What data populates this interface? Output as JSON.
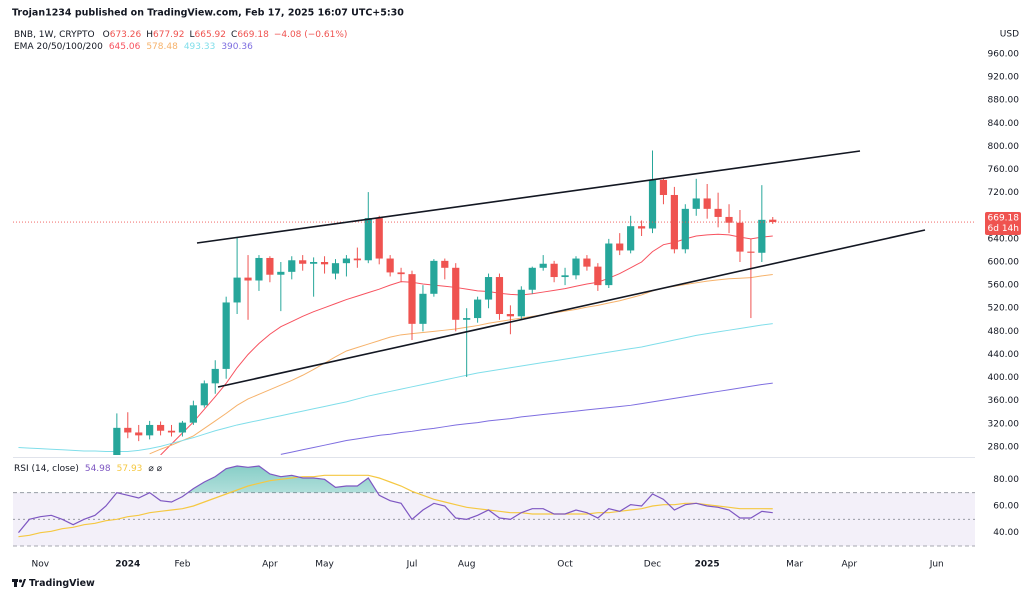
{
  "header": "Trojan1234 published on TradingView.com, Feb 17, 2025 16:07 UTC+5:30",
  "footer": "TradingView",
  "chart_data": [
    {
      "type": "candlestick",
      "categories": [
        null,
        null,
        "Nov",
        null,
        null,
        null,
        null,
        null,
        null,
        null,
        "2024",
        null,
        null,
        null,
        null,
        "Feb",
        null,
        null,
        null,
        null,
        null,
        null,
        null,
        "Apr",
        null,
        null,
        null,
        null,
        "May",
        null,
        null,
        null,
        null,
        null,
        null,
        null,
        "Jul",
        null,
        null,
        null,
        null,
        "Aug",
        null,
        null,
        null,
        null,
        null,
        null,
        null,
        null,
        "Oct",
        null,
        null,
        null,
        null,
        null,
        null,
        null,
        "Dec",
        null,
        null,
        null,
        null,
        "2025",
        null,
        null,
        null,
        null,
        null,
        null,
        null,
        "Mar",
        null,
        null,
        null,
        null,
        "Apr",
        null,
        null,
        null,
        null,
        null,
        null,
        null,
        "Jun",
        null,
        null,
        null
      ],
      "series": [
        {
          "name": "BNB, 1W, CRYPTO",
          "up_color": "#26a69a",
          "down_color": "#ef5350",
          "open": [
            null,
            null,
            null,
            null,
            null,
            null,
            null,
            null,
            null,
            243,
            313,
            305,
            300,
            318,
            308,
            305,
            322,
            352,
            390,
            415,
            530,
            573,
            568,
            607,
            578,
            583,
            603,
            597,
            600,
            580,
            598,
            606,
            603,
            676,
            606,
            582,
            579,
            493,
            545,
            602,
            590,
            500,
            503,
            535,
            574,
            510,
            506,
            552,
            590,
            597,
            574,
            577,
            606,
            592,
            560,
            632,
            620,
            662,
            658,
            742,
            716,
            622,
            692,
            710,
            692,
            678,
            668,
            618,
            616,
            673.26,
            null,
            null,
            null,
            null,
            null,
            null,
            null,
            null,
            null,
            null,
            null,
            null,
            null,
            null,
            null,
            null,
            null,
            null
          ],
          "high": [
            null,
            null,
            null,
            null,
            null,
            null,
            null,
            null,
            null,
            338,
            340,
            318,
            325,
            324,
            318,
            325,
            360,
            395,
            430,
            540,
            643,
            612,
            612,
            610,
            600,
            610,
            612,
            608,
            610,
            605,
            612,
            625,
            721,
            680,
            612,
            590,
            585,
            560,
            605,
            606,
            598,
            520,
            540,
            580,
            580,
            525,
            558,
            592,
            612,
            602,
            590,
            610,
            612,
            598,
            640,
            650,
            680,
            672,
            793,
            745,
            730,
            700,
            744,
            735,
            720,
            700,
            690,
            640,
            733,
            677.92,
            null,
            null,
            null,
            null,
            null,
            null,
            null,
            null,
            null,
            null,
            null,
            null,
            null,
            null,
            null,
            null,
            null,
            null
          ],
          "low": [
            null,
            null,
            null,
            null,
            null,
            null,
            null,
            null,
            null,
            236,
            295,
            290,
            293,
            300,
            298,
            298,
            318,
            348,
            372,
            398,
            510,
            500,
            550,
            565,
            515,
            570,
            585,
            540,
            580,
            570,
            575,
            590,
            598,
            596,
            575,
            565,
            465,
            480,
            540,
            570,
            480,
            401,
            495,
            520,
            500,
            475,
            500,
            545,
            585,
            565,
            560,
            570,
            585,
            550,
            555,
            612,
            615,
            645,
            650,
            700,
            615,
            615,
            680,
            675,
            660,
            650,
            600,
            503,
            600,
            665.92,
            null,
            null,
            null,
            null,
            null,
            null,
            null,
            null,
            null,
            null,
            null,
            null,
            null,
            null,
            null,
            null,
            null,
            null
          ],
          "close": [
            null,
            null,
            null,
            null,
            null,
            null,
            null,
            null,
            null,
            313,
            305,
            300,
            318,
            308,
            305,
            322,
            352,
            390,
            415,
            530,
            573,
            568,
            607,
            578,
            583,
            603,
            597,
            600,
            596,
            598,
            606,
            603,
            676,
            606,
            582,
            579,
            493,
            545,
            602,
            590,
            500,
            503,
            535,
            574,
            510,
            506,
            552,
            590,
            597,
            574,
            577,
            606,
            592,
            560,
            632,
            620,
            662,
            658,
            742,
            716,
            622,
            692,
            710,
            692,
            678,
            668,
            618,
            616,
            673,
            669.18,
            null,
            null,
            null,
            null,
            null,
            null,
            null,
            null,
            null,
            null,
            null,
            null,
            null,
            null,
            null,
            null,
            null,
            null
          ]
        }
      ],
      "ohlc_labels": [
        "O",
        "H",
        "L",
        "C"
      ],
      "change": "−4.08 (−0.61%)",
      "overlay_label": "EMA 20/50/100/200",
      "lines": [
        {
          "color": "#f7525f",
          "values": [
            null,
            null,
            null,
            null,
            null,
            null,
            null,
            null,
            null,
            null,
            null,
            null,
            null,
            266,
            285,
            304,
            323,
            345,
            367,
            390,
            417,
            440,
            459,
            475,
            488,
            497,
            506,
            514,
            521,
            528,
            535,
            541,
            547,
            553,
            560,
            566,
            565,
            562,
            560,
            558,
            556,
            553,
            550,
            549,
            546,
            544,
            543,
            545,
            548,
            551,
            554,
            558,
            562,
            565,
            572,
            580,
            590,
            600,
            618,
            630,
            634,
            640,
            645,
            647,
            648,
            647,
            643,
            640,
            643,
            645.06,
            null,
            null,
            null,
            null,
            null,
            null,
            null,
            null,
            null,
            null,
            null,
            null,
            null,
            null,
            null,
            null,
            null,
            null
          ]
        },
        {
          "color": "#f6b26b",
          "values": [
            null,
            null,
            null,
            null,
            null,
            null,
            null,
            null,
            null,
            null,
            null,
            null,
            268,
            276,
            283,
            291,
            299,
            312,
            325,
            338,
            352,
            363,
            371,
            379,
            387,
            395,
            404,
            414,
            425,
            436,
            446,
            452,
            458,
            464,
            470,
            474,
            476,
            478,
            480,
            482,
            484,
            487,
            490,
            494,
            497,
            500,
            503,
            506,
            509,
            512,
            515,
            518,
            522,
            525,
            529,
            533,
            538,
            543,
            550,
            555,
            558,
            561,
            564,
            567,
            569,
            571,
            572,
            573,
            576,
            578.48,
            null,
            null,
            null,
            null,
            null,
            null,
            null,
            null,
            null,
            null,
            null,
            null,
            null,
            null,
            null,
            null,
            null,
            null
          ]
        },
        {
          "color": "#80deea",
          "values": [
            279,
            278,
            277,
            276,
            275,
            274,
            273,
            273,
            272,
            272,
            272,
            274,
            277,
            281,
            286,
            291,
            296,
            302,
            308,
            313,
            318,
            322,
            326,
            330,
            334,
            338,
            342,
            346,
            350,
            354,
            358,
            363,
            368,
            372,
            376,
            380,
            384,
            388,
            392,
            396,
            400,
            404,
            408,
            411,
            414,
            417,
            420,
            423,
            426,
            429,
            432,
            435,
            438,
            441,
            444,
            447,
            450,
            453,
            457,
            461,
            465,
            469,
            473,
            476,
            479,
            482,
            485,
            488,
            491,
            493.33,
            null,
            null,
            null,
            null,
            null,
            null,
            null,
            null,
            null,
            null,
            null,
            null,
            null,
            null,
            null,
            null,
            null,
            null
          ]
        },
        {
          "color": "#7e6ee0",
          "values": [
            null,
            null,
            null,
            null,
            null,
            null,
            null,
            null,
            null,
            null,
            null,
            null,
            null,
            null,
            null,
            null,
            null,
            null,
            null,
            null,
            null,
            null,
            null,
            null,
            267,
            271,
            275,
            279,
            283,
            287,
            291,
            294,
            297,
            300,
            302,
            305,
            307,
            310,
            312,
            315,
            318,
            320,
            322,
            325,
            327,
            329,
            332,
            334,
            336,
            338,
            340,
            342,
            344,
            346,
            348,
            350,
            352,
            355,
            358,
            361,
            364,
            367,
            370,
            373,
            376,
            379,
            382,
            385,
            388,
            390.36,
            null,
            null,
            null,
            null,
            null,
            null,
            null,
            null,
            null,
            null,
            null,
            null,
            null,
            null,
            null,
            null,
            null,
            null
          ]
        }
      ],
      "ylim": [
        266,
        1005
      ],
      "yticks": [
        {
          "value": 280,
          "label": "280.00"
        },
        {
          "value": 320,
          "label": "320.00"
        },
        {
          "value": 360,
          "label": "360.00"
        },
        {
          "value": 400,
          "label": "400.00"
        },
        {
          "value": 440,
          "label": "440.00"
        },
        {
          "value": 480,
          "label": "480.00"
        },
        {
          "value": 520,
          "label": "520.00"
        },
        {
          "value": 560,
          "label": "560.00"
        },
        {
          "value": 600,
          "label": "600.00"
        },
        {
          "value": 640,
          "label": "640.00"
        },
        {
          "value": 680,
          "label": "680.00"
        },
        {
          "value": 720,
          "label": "720.00"
        },
        {
          "value": 760,
          "label": "760.00"
        },
        {
          "value": 800,
          "label": "800.00"
        },
        {
          "value": 840,
          "label": "840.00"
        },
        {
          "value": 880,
          "label": "880.00"
        },
        {
          "value": 920,
          "label": "920.00"
        },
        {
          "value": 960,
          "label": "960.00"
        }
      ],
      "currency": "USD",
      "countdown": "6d 14h"
    },
    {
      "type": "line",
      "title": "RSI (14, close)",
      "extra": "⌀ ⌀",
      "series": [
        {
          "color": "#7e57c2",
          "values": [
            40,
            50,
            52,
            53,
            50,
            46,
            50,
            53,
            60,
            70,
            68,
            66,
            70,
            64,
            63,
            67,
            73,
            78,
            82,
            88,
            90,
            89,
            90,
            84,
            82,
            83,
            81,
            81,
            80,
            74,
            75,
            75,
            81,
            68,
            64,
            62,
            50,
            57,
            62,
            60,
            51,
            50,
            53,
            57,
            51,
            50,
            55,
            58,
            58,
            54,
            54,
            57,
            55,
            51,
            58,
            56,
            61,
            60,
            69,
            65,
            57,
            61,
            62,
            60,
            59,
            57,
            51,
            51,
            56,
            54.98,
            null,
            null,
            null,
            null,
            null,
            null,
            null,
            null,
            null,
            null,
            null,
            null,
            null,
            null,
            null,
            null,
            null,
            null
          ]
        },
        {
          "color": "#f5c842",
          "values": [
            37,
            38,
            40,
            41,
            43,
            44,
            46,
            47,
            49,
            50,
            52,
            53,
            55,
            56,
            57,
            58,
            60,
            63,
            66,
            69,
            72,
            75,
            77,
            79,
            80,
            81,
            82,
            82,
            83,
            83,
            83,
            83,
            83,
            81,
            78,
            75,
            71,
            68,
            65,
            63,
            61,
            59,
            58,
            57,
            56,
            55,
            55,
            54,
            54,
            54,
            54,
            54,
            54,
            55,
            55,
            56,
            57,
            58,
            60,
            61,
            61,
            62,
            62,
            61,
            60,
            59,
            58,
            58,
            58,
            57.93,
            null,
            null,
            null,
            null,
            null,
            null,
            null,
            null,
            null,
            null,
            null,
            null,
            null,
            null,
            null,
            null,
            null,
            null
          ]
        }
      ],
      "levels": [
        30,
        50,
        70
      ],
      "ylim": [
        27,
        93
      ],
      "yticks": [
        {
          "value": 40,
          "label": "40.00"
        },
        {
          "value": 60,
          "label": "60.00"
        },
        {
          "value": 80,
          "label": "80.00"
        }
      ]
    }
  ]
}
